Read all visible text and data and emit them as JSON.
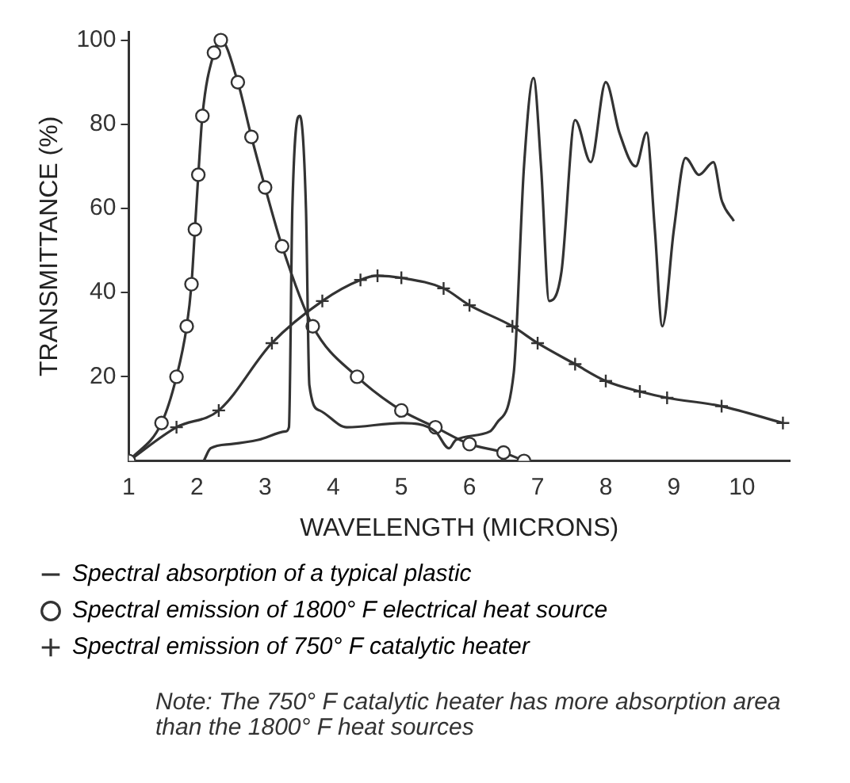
{
  "chart_data": {
    "type": "line",
    "xlabel": "WAVELENGTH (MICRONS)",
    "ylabel": "TRANSMITTANCE (%)",
    "xlim": [
      1,
      10.7
    ],
    "xticks": [
      1,
      2,
      3,
      4,
      5,
      6,
      7,
      8,
      9,
      10
    ],
    "ylim": [
      0,
      102
    ],
    "yticks": [
      20,
      40,
      60,
      80,
      100
    ],
    "grid": false,
    "legend": "bottom",
    "line_style": "solid",
    "series": [
      {
        "name": "Spectral absorption of a typical plastic",
        "color": "#333333",
        "marker": "none",
        "x": [
          2.1,
          2.2,
          2.5,
          2.9,
          3.3,
          3.35,
          3.4,
          3.51,
          3.6,
          3.65,
          3.8,
          4.2,
          5.0,
          5.5,
          5.7,
          5.8,
          6.3,
          6.4,
          6.65,
          6.8,
          6.94,
          7.05,
          7.17,
          7.35,
          7.55,
          7.78,
          8.0,
          8.2,
          8.44,
          8.6,
          8.72,
          8.83,
          9.0,
          9.17,
          9.37,
          9.58,
          9.7,
          9.88
        ],
        "values": [
          0,
          3,
          4,
          5,
          7,
          8,
          60,
          82,
          60,
          18,
          12,
          8,
          9,
          7,
          3,
          5,
          7,
          9,
          21,
          70,
          91,
          70,
          38,
          45,
          81,
          71,
          90,
          78,
          70,
          78,
          55,
          32,
          55,
          72,
          68,
          71,
          62,
          57
        ]
      },
      {
        "name": "Spectral emission of 1800° F electrical heat source",
        "color": "#333333",
        "marker": "circle",
        "x": [
          1,
          1.48,
          1.7,
          1.85,
          1.92,
          1.97,
          2.02,
          2.08,
          2.25,
          2.35,
          2.6,
          2.8,
          3.0,
          3.25,
          3.7,
          4.35,
          5.0,
          5.5,
          6.0,
          6.5,
          6.8
        ],
        "values": [
          0,
          9,
          20,
          32,
          42,
          55,
          68,
          82,
          97,
          100,
          90,
          77,
          65,
          51,
          32,
          20,
          12,
          8,
          4,
          2,
          0
        ]
      },
      {
        "name": "Spectral emission of 750° F catalytic heater",
        "color": "#333333",
        "marker": "cross",
        "x": [
          1,
          1.7,
          2.32,
          3.1,
          3.84,
          4.4,
          4.65,
          5.0,
          5.62,
          6.0,
          6.63,
          7.0,
          7.55,
          8.0,
          8.5,
          8.9,
          9.7,
          10.6
        ],
        "values": [
          0,
          8,
          12,
          28,
          38,
          43,
          44,
          43.5,
          41,
          37,
          32,
          28,
          23,
          19,
          16.5,
          15,
          13,
          9
        ]
      }
    ],
    "annotations": [
      "Note: The 750° F catalytic heater has more absorption area than the 1800° F heat sources"
    ]
  }
}
